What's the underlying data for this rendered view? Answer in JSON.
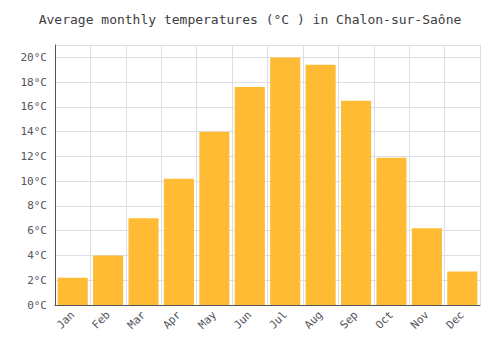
{
  "chart_data": {
    "type": "bar",
    "title": "Average monthly temperatures (°C ) in Chalon-sur-Saône",
    "categories": [
      "Jan",
      "Feb",
      "Mar",
      "Apr",
      "May",
      "Jun",
      "Jul",
      "Aug",
      "Sep",
      "Oct",
      "Nov",
      "Dec"
    ],
    "values": [
      2.2,
      4.0,
      7.0,
      10.2,
      14.0,
      17.6,
      20.0,
      19.4,
      16.5,
      11.9,
      6.2,
      2.7
    ],
    "color": "#FFBB33",
    "ylim": [
      0,
      21
    ],
    "yticks": [
      {
        "value": 0,
        "label": "0°C"
      },
      {
        "value": 2,
        "label": "2°C"
      },
      {
        "value": 4,
        "label": "4°C"
      },
      {
        "value": 6,
        "label": "6°C"
      },
      {
        "value": 8,
        "label": "8°C"
      },
      {
        "value": 10,
        "label": "10°C"
      },
      {
        "value": 12,
        "label": "12°C"
      },
      {
        "value": 14,
        "label": "14°C"
      },
      {
        "value": 16,
        "label": "16°C"
      },
      {
        "value": 18,
        "label": "18°C"
      },
      {
        "value": 20,
        "label": "20°C"
      }
    ],
    "grid": true
  }
}
